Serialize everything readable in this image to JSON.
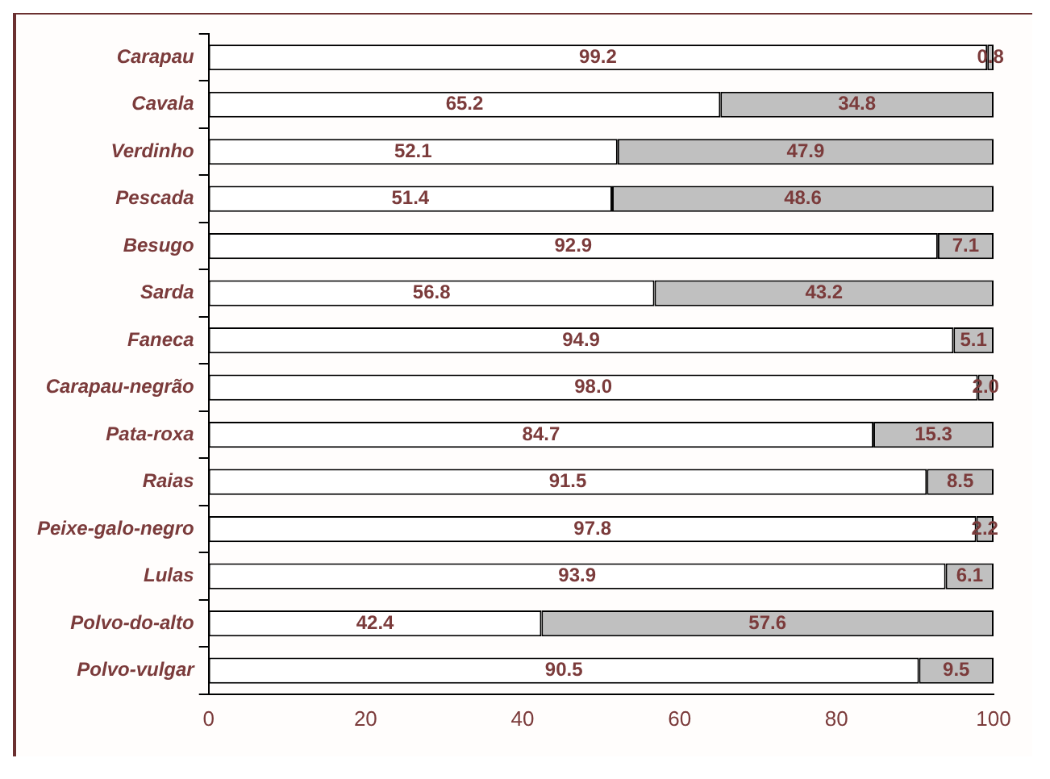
{
  "chart_data": {
    "type": "bar",
    "orientation": "horizontal",
    "stacked": true,
    "categories": [
      "Carapau",
      "Cavala",
      "Verdinho",
      "Pescada",
      "Besugo",
      "Sarda",
      "Faneca",
      "Carapau-negrão",
      "Pata-roxa",
      "Raias",
      "Peixe-galo-negro",
      "Lulas",
      "Polvo-do-alto",
      "Polvo-vulgar"
    ],
    "series": [
      {
        "color": "#ffffff",
        "values": [
          99.2,
          65.2,
          52.1,
          51.4,
          92.9,
          56.8,
          94.9,
          98.0,
          84.7,
          91.5,
          97.8,
          93.9,
          42.4,
          90.5
        ],
        "value_labels": [
          "99.2",
          "65.2",
          "52.1",
          "51.4",
          "92.9",
          "56.8",
          "94.9",
          "98.0",
          "84.7",
          "91.5",
          "97.8",
          "93.9",
          "42.4",
          "90.5"
        ]
      },
      {
        "color": "#c0c0c0",
        "values": [
          0.8,
          34.8,
          47.9,
          48.6,
          7.1,
          43.2,
          5.1,
          2.0,
          15.3,
          8.5,
          2.2,
          6.1,
          57.6,
          9.5
        ],
        "value_labels": [
          "0.8",
          "34.8",
          "47.9",
          "48.6",
          "7.1",
          "43.2",
          "5.1",
          "2.0",
          "15.3",
          "8.5",
          "2.2",
          "6.1",
          "57.6",
          "9.5"
        ]
      }
    ],
    "xlim": [
      0,
      100
    ],
    "xticks": [
      0,
      20,
      40,
      60,
      80,
      100
    ],
    "grid": false,
    "legend": false
  }
}
